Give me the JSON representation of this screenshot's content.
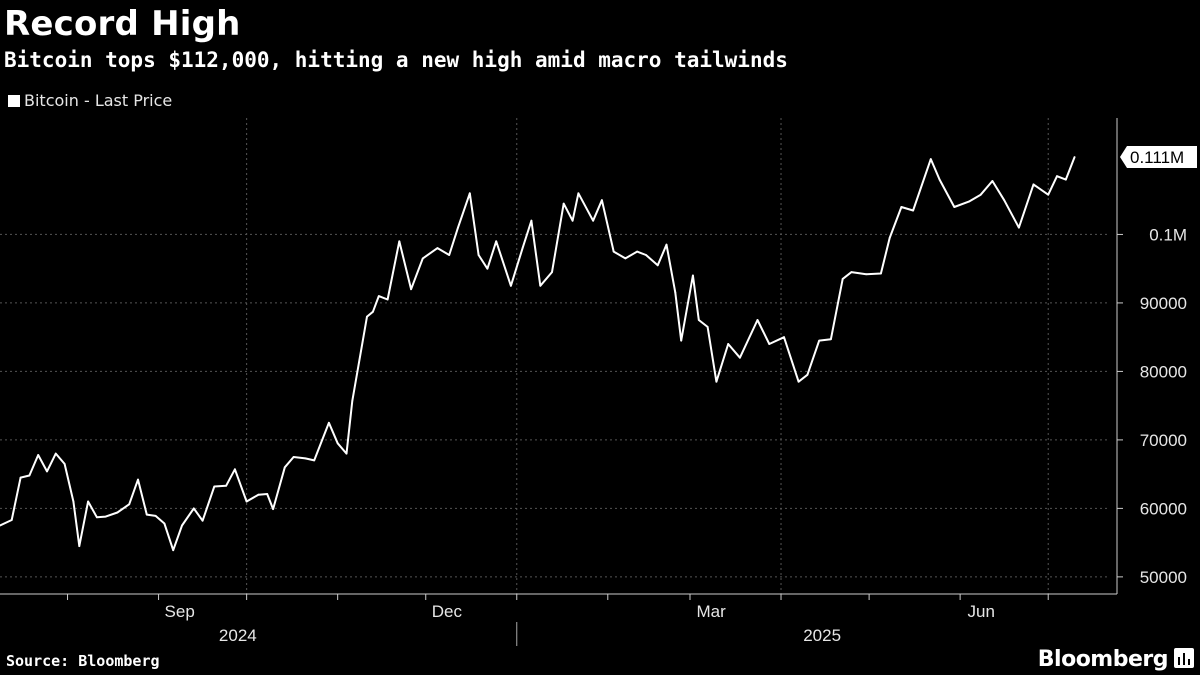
{
  "header": {
    "title": "Record High",
    "subtitle": "Bitcoin tops $112,000, hitting a new high amid macro tailwinds"
  },
  "legend": {
    "label": "Bitcoin - Last Price"
  },
  "footer": {
    "source": "Source: Bloomberg",
    "brand": "Bloomberg"
  },
  "colors": {
    "background": "#000000",
    "line": "#ffffff",
    "grid": "#555555",
    "text": "#e6e6e6"
  },
  "icons": {
    "brand": "bloomberg-terminal-icon"
  },
  "chart_data": {
    "type": "line",
    "title": "Record High",
    "subtitle": "Bitcoin tops $112,000, hitting a new high amid macro tailwinds",
    "series": [
      {
        "name": "Bitcoin - Last Price",
        "points": [
          [
            "2024-07-09",
            57500
          ],
          [
            "2024-07-13",
            58300
          ],
          [
            "2024-07-16",
            64500
          ],
          [
            "2024-07-19",
            64800
          ],
          [
            "2024-07-22",
            67800
          ],
          [
            "2024-07-25",
            65400
          ],
          [
            "2024-07-28",
            68000
          ],
          [
            "2024-07-31",
            66500
          ],
          [
            "2024-08-03",
            61000
          ],
          [
            "2024-08-05",
            54500
          ],
          [
            "2024-08-08",
            61000
          ],
          [
            "2024-08-11",
            58700
          ],
          [
            "2024-08-14",
            58800
          ],
          [
            "2024-08-18",
            59400
          ],
          [
            "2024-08-22",
            60600
          ],
          [
            "2024-08-25",
            64200
          ],
          [
            "2024-08-28",
            59100
          ],
          [
            "2024-08-31",
            58900
          ],
          [
            "2024-09-03",
            57800
          ],
          [
            "2024-09-06",
            53900
          ],
          [
            "2024-09-09",
            57500
          ],
          [
            "2024-09-13",
            60000
          ],
          [
            "2024-09-16",
            58200
          ],
          [
            "2024-09-20",
            63200
          ],
          [
            "2024-09-24",
            63300
          ],
          [
            "2024-09-27",
            65700
          ],
          [
            "2024-10-01",
            61000
          ],
          [
            "2024-10-05",
            62000
          ],
          [
            "2024-10-08",
            62100
          ],
          [
            "2024-10-10",
            59900
          ],
          [
            "2024-10-14",
            66000
          ],
          [
            "2024-10-17",
            67500
          ],
          [
            "2024-10-21",
            67300
          ],
          [
            "2024-10-24",
            67000
          ],
          [
            "2024-10-29",
            72500
          ],
          [
            "2024-11-01",
            69500
          ],
          [
            "2024-11-04",
            68000
          ],
          [
            "2024-11-06",
            75700
          ],
          [
            "2024-11-11",
            88000
          ],
          [
            "2024-11-13",
            88700
          ],
          [
            "2024-11-15",
            91000
          ],
          [
            "2024-11-18",
            90500
          ],
          [
            "2024-11-22",
            99000
          ],
          [
            "2024-11-26",
            92000
          ],
          [
            "2024-11-30",
            96500
          ],
          [
            "2024-12-05",
            98000
          ],
          [
            "2024-12-09",
            97000
          ],
          [
            "2024-12-12",
            101000
          ],
          [
            "2024-12-16",
            106000
          ],
          [
            "2024-12-19",
            97000
          ],
          [
            "2024-12-22",
            95000
          ],
          [
            "2024-12-25",
            99000
          ],
          [
            "2024-12-30",
            92500
          ],
          [
            "2025-01-03",
            98000
          ],
          [
            "2025-01-06",
            102000
          ],
          [
            "2025-01-09",
            92500
          ],
          [
            "2025-01-13",
            94500
          ],
          [
            "2025-01-17",
            104500
          ],
          [
            "2025-01-20",
            102000
          ],
          [
            "2025-01-22",
            106000
          ],
          [
            "2025-01-27",
            102000
          ],
          [
            "2025-01-30",
            105000
          ],
          [
            "2025-02-03",
            97500
          ],
          [
            "2025-02-07",
            96500
          ],
          [
            "2025-02-11",
            97500
          ],
          [
            "2025-02-14",
            97000
          ],
          [
            "2025-02-18",
            95500
          ],
          [
            "2025-02-21",
            98500
          ],
          [
            "2025-02-24",
            91500
          ],
          [
            "2025-02-26",
            84500
          ],
          [
            "2025-03-02",
            94000
          ],
          [
            "2025-03-04",
            87500
          ],
          [
            "2025-03-07",
            86500
          ],
          [
            "2025-03-10",
            78500
          ],
          [
            "2025-03-14",
            84000
          ],
          [
            "2025-03-18",
            82000
          ],
          [
            "2025-03-24",
            87500
          ],
          [
            "2025-03-28",
            84000
          ],
          [
            "2025-04-02",
            85000
          ],
          [
            "2025-04-07",
            78500
          ],
          [
            "2025-04-10",
            79500
          ],
          [
            "2025-04-14",
            84500
          ],
          [
            "2025-04-18",
            84700
          ],
          [
            "2025-04-22",
            93500
          ],
          [
            "2025-04-25",
            94500
          ],
          [
            "2025-04-30",
            94200
          ],
          [
            "2025-05-05",
            94300
          ],
          [
            "2025-05-08",
            99500
          ],
          [
            "2025-05-12",
            104000
          ],
          [
            "2025-05-16",
            103500
          ],
          [
            "2025-05-22",
            111000
          ],
          [
            "2025-05-25",
            108000
          ],
          [
            "2025-05-30",
            104000
          ],
          [
            "2025-06-04",
            104800
          ],
          [
            "2025-06-08",
            105800
          ],
          [
            "2025-06-12",
            107800
          ],
          [
            "2025-06-16",
            105000
          ],
          [
            "2025-06-21",
            101000
          ],
          [
            "2025-06-26",
            107300
          ],
          [
            "2025-07-01",
            105800
          ],
          [
            "2025-07-04",
            108500
          ],
          [
            "2025-07-07",
            108000
          ],
          [
            "2025-07-10",
            111300
          ]
        ]
      }
    ],
    "last_value_label": "0.111M",
    "x_range": [
      "2024-07-09",
      "2025-07-20"
    ],
    "ylim": [
      47500,
      117000
    ],
    "y_ticks": [
      {
        "value": 50000,
        "label": "50000"
      },
      {
        "value": 60000,
        "label": "60000"
      },
      {
        "value": 70000,
        "label": "70000"
      },
      {
        "value": 80000,
        "label": "80000"
      },
      {
        "value": 90000,
        "label": "90000"
      },
      {
        "value": 100000,
        "label": "0.1M"
      }
    ],
    "x_month_ticks": [
      "2024-08-01",
      "2024-09-01",
      "2024-10-01",
      "2024-11-01",
      "2024-12-01",
      "2025-01-01",
      "2025-02-01",
      "2025-03-01",
      "2025-04-01",
      "2025-05-01",
      "2025-06-01",
      "2025-07-01"
    ],
    "x_labels": [
      {
        "date": "2024-09-15",
        "label": "Sep"
      },
      {
        "date": "2024-12-15",
        "label": "Dec"
      },
      {
        "date": "2025-03-15",
        "label": "Mar"
      },
      {
        "date": "2025-06-15",
        "label": "Jun"
      }
    ],
    "x_vertical_grid": [
      "2024-10-01",
      "2025-01-01",
      "2025-04-01",
      "2025-07-01"
    ],
    "year_labels": [
      {
        "date": "2024-09-28",
        "label": "2024"
      },
      {
        "date": "2025-04-15",
        "label": "2025"
      }
    ],
    "year_divider": "2025-01-01",
    "grid": true,
    "legend_position": "top-left"
  }
}
